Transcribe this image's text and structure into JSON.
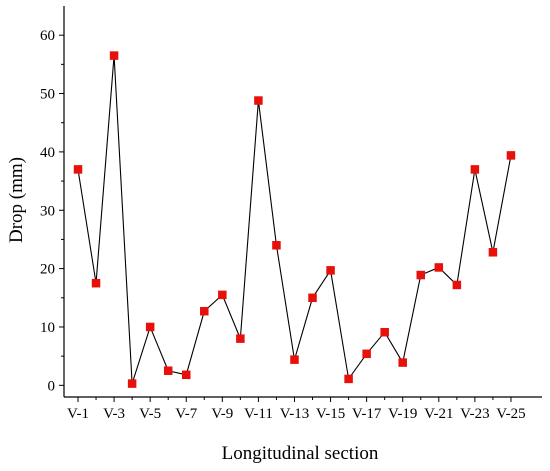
{
  "chart_data": {
    "type": "line",
    "xlabel": "Longitudinal section",
    "ylabel": "Drop (mm)",
    "ylim": [
      -2,
      65
    ],
    "yticks": [
      0,
      10,
      20,
      30,
      40,
      50,
      60
    ],
    "grid": false,
    "legend": "none",
    "marker_color": "#e8100a",
    "line_color": "#000000",
    "categories": [
      "V-1",
      "V-2",
      "V-3",
      "V-4",
      "V-5",
      "V-6",
      "V-7",
      "V-8",
      "V-9",
      "V-10",
      "V-11",
      "V-12",
      "V-13",
      "V-14",
      "V-15",
      "V-16",
      "V-17",
      "V-18",
      "V-19",
      "V-20",
      "V-21",
      "V-22",
      "V-23",
      "V-24",
      "V-25"
    ],
    "tick_labels": [
      "V-1",
      "V-3",
      "V-5",
      "V-7",
      "V-9",
      "V-11",
      "V-13",
      "V-15",
      "V-17",
      "V-19",
      "V-21",
      "V-23",
      "V-25"
    ],
    "series": [
      {
        "values": [
          37.0,
          17.5,
          56.5,
          0.3,
          10.0,
          2.5,
          1.8,
          12.7,
          15.5,
          8.0,
          48.8,
          24.0,
          4.4,
          15.0,
          19.7,
          1.1,
          5.4,
          9.1,
          3.9,
          18.9,
          20.2,
          17.2,
          37.0,
          22.8,
          39.4
        ]
      }
    ]
  }
}
